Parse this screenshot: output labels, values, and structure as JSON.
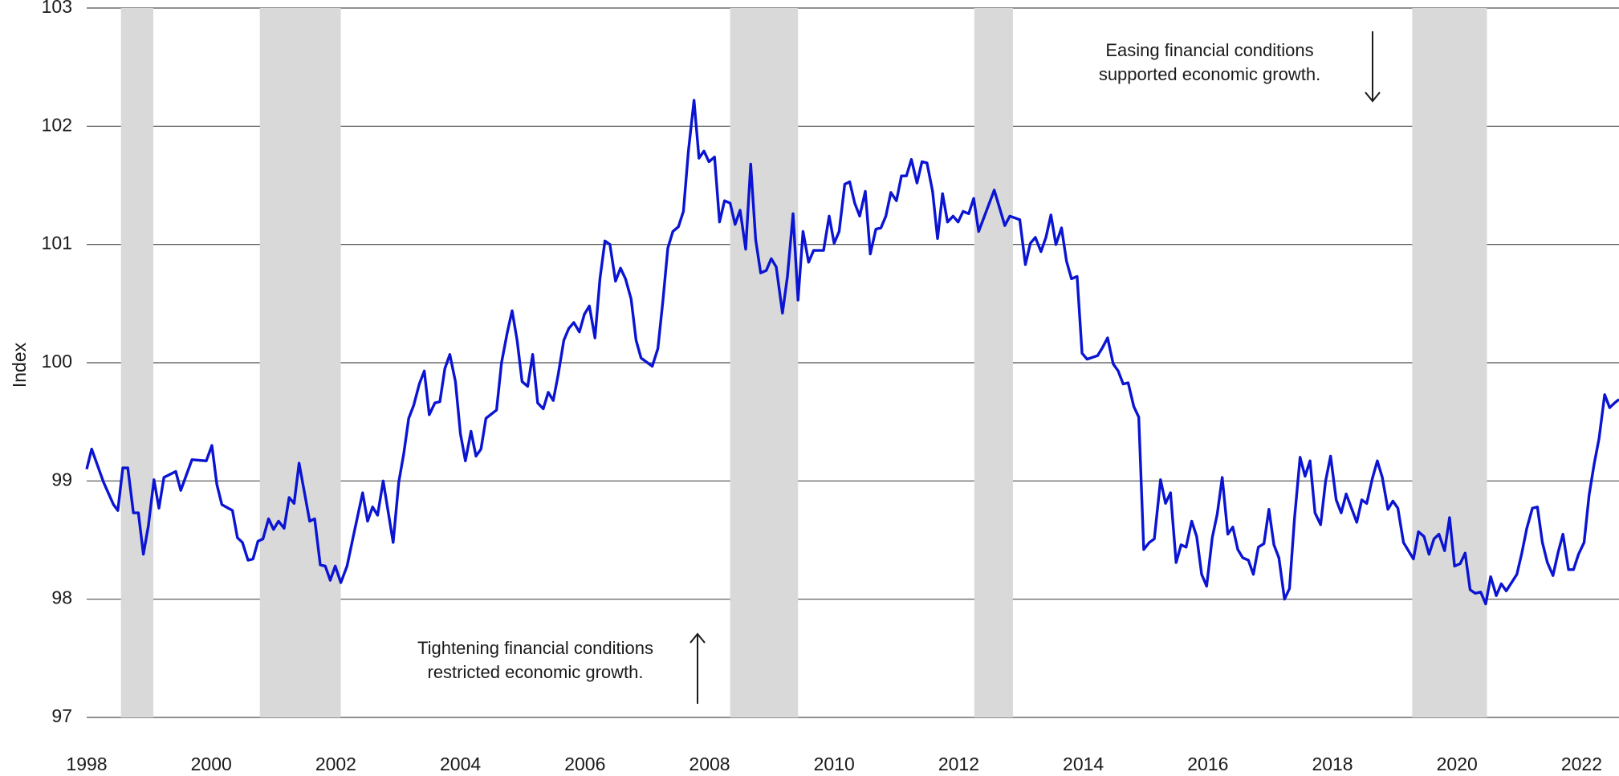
{
  "chart_data": {
    "type": "line",
    "ylabel": "Index",
    "color": "#0a14d2",
    "shade_color": "#d9d9d9",
    "grid": true,
    "xlim": [
      1998,
      2022.6
    ],
    "ylim": [
      97,
      103
    ],
    "xticks": [
      1998,
      2000,
      2002,
      2004,
      2006,
      2008,
      2010,
      2012,
      2014,
      2016,
      2018,
      2020,
      2022
    ],
    "yticks": [
      97,
      98,
      99,
      100,
      101,
      102,
      103
    ],
    "shaded_periods": [
      [
        1998.55,
        1999.07
      ],
      [
        2000.78,
        2002.08
      ],
      [
        2008.33,
        2009.42
      ],
      [
        2012.25,
        2012.87
      ],
      [
        2019.28,
        2020.48
      ]
    ],
    "annotations": [
      {
        "lines": [
          "Easing financial conditions",
          "supported economic growth."
        ],
        "arrow": "down"
      },
      {
        "lines": [
          "Tightening financial conditions",
          "restricted economic growth."
        ],
        "arrow": "up"
      }
    ],
    "x": [
      1998.0,
      1998.08,
      1998.27,
      1998.43,
      1998.5,
      1998.58,
      1998.66,
      1998.75,
      1998.83,
      1998.91,
      1998.99,
      1999.08,
      1999.16,
      1999.24,
      1999.43,
      1999.51,
      1999.69,
      1999.92,
      2000.01,
      2000.09,
      2000.17,
      2000.34,
      2000.42,
      2000.5,
      2000.59,
      2000.67,
      2000.75,
      2000.83,
      2000.92,
      2001.0,
      2001.08,
      2001.17,
      2001.25,
      2001.33,
      2001.41,
      2001.58,
      2001.66,
      2001.75,
      2001.83,
      2001.91,
      2001.99,
      2002.08,
      2002.18,
      2002.28,
      2002.43,
      2002.51,
      2002.59,
      2002.67,
      2002.76,
      2002.92,
      2003.01,
      2003.09,
      2003.17,
      2003.25,
      2003.34,
      2003.42,
      2003.5,
      2003.59,
      2003.67,
      2003.75,
      2003.83,
      2003.92,
      2004.0,
      2004.08,
      2004.17,
      2004.25,
      2004.33,
      2004.41,
      2004.58,
      2004.66,
      2004.75,
      2004.83,
      2004.91,
      2004.99,
      2005.08,
      2005.16,
      2005.24,
      2005.33,
      2005.41,
      2005.49,
      2005.57,
      2005.66,
      2005.74,
      2005.82,
      2005.91,
      2005.99,
      2006.07,
      2006.16,
      2006.24,
      2006.32,
      2006.4,
      2006.49,
      2006.57,
      2006.65,
      2006.74,
      2006.82,
      2006.9,
      2007.08,
      2007.17,
      2007.25,
      2007.33,
      2007.41,
      2007.5,
      2007.58,
      2007.66,
      2007.75,
      2007.83,
      2007.91,
      2007.99,
      2008.08,
      2008.16,
      2008.24,
      2008.33,
      2008.41,
      2008.49,
      2008.58,
      2008.66,
      2008.74,
      2008.82,
      2008.91,
      2008.99,
      2009.07,
      2009.17,
      2009.25,
      2009.34,
      2009.42,
      2009.5,
      2009.59,
      2009.67,
      2009.83,
      2009.92,
      2010.0,
      2010.08,
      2010.17,
      2010.25,
      2010.33,
      2010.41,
      2010.5,
      2010.58,
      2010.67,
      2010.75,
      2010.83,
      2010.91,
      2011.0,
      2011.08,
      2011.16,
      2011.24,
      2011.33,
      2011.41,
      2011.49,
      2011.58,
      2011.66,
      2011.74,
      2011.82,
      2011.91,
      2011.99,
      2012.07,
      2012.16,
      2012.24,
      2012.32,
      2012.57,
      2012.74,
      2012.82,
      2012.98,
      2013.07,
      2013.15,
      2013.23,
      2013.32,
      2013.4,
      2013.48,
      2013.56,
      2013.65,
      2013.73,
      2013.81,
      2013.9,
      2013.98,
      2014.06,
      2014.23,
      2014.31,
      2014.39,
      2014.48,
      2014.56,
      2014.64,
      2014.72,
      2014.81,
      2014.89,
      2014.97,
      2015.06,
      2015.14,
      2015.24,
      2015.32,
      2015.4,
      2015.49,
      2015.57,
      2015.65,
      2015.74,
      2015.82,
      2015.9,
      2015.98,
      2016.07,
      2016.15,
      2016.23,
      2016.32,
      2016.4,
      2016.48,
      2016.56,
      2016.65,
      2016.73,
      2016.81,
      2016.9,
      2016.98,
      2017.06,
      2017.14,
      2017.23,
      2017.31,
      2017.39,
      2017.48,
      2017.56,
      2017.64,
      2017.72,
      2017.81,
      2017.89,
      2017.97,
      2018.06,
      2018.14,
      2018.22,
      2018.39,
      2018.47,
      2018.55,
      2018.64,
      2018.72,
      2018.8,
      2018.89,
      2018.97,
      2019.05,
      2019.14,
      2019.3,
      2019.38,
      2019.47,
      2019.55,
      2019.63,
      2019.71,
      2019.8,
      2019.88,
      2019.96,
      2020.05,
      2020.13,
      2020.21,
      2020.29,
      2020.38,
      2020.46,
      2020.54,
      2020.63,
      2020.71,
      2020.79,
      2020.96,
      2021.04,
      2021.12,
      2021.21,
      2021.29,
      2021.37,
      2021.45,
      2021.54,
      2021.62,
      2021.7,
      2021.79,
      2021.87,
      2021.95,
      2022.04,
      2022.12,
      2022.2,
      2022.28,
      2022.37,
      2022.45,
      2022.53,
      2022.6
    ],
    "values": [
      99.1,
      99.27,
      98.99,
      98.8,
      98.75,
      99.11,
      99.11,
      98.73,
      98.73,
      98.38,
      98.62,
      99.01,
      98.77,
      99.03,
      99.08,
      98.92,
      99.18,
      99.17,
      99.3,
      98.97,
      98.8,
      98.75,
      98.52,
      98.48,
      98.33,
      98.34,
      98.49,
      98.51,
      98.68,
      98.59,
      98.66,
      98.6,
      98.86,
      98.81,
      99.15,
      98.66,
      98.68,
      98.29,
      98.28,
      98.16,
      98.28,
      98.14,
      98.28,
      98.53,
      98.9,
      98.66,
      98.78,
      98.71,
      99.0,
      98.48,
      98.99,
      99.23,
      99.53,
      99.64,
      99.82,
      99.93,
      99.56,
      99.66,
      99.67,
      99.95,
      100.07,
      99.84,
      99.4,
      99.17,
      99.42,
      99.21,
      99.27,
      99.53,
      99.6,
      100.0,
      100.25,
      100.44,
      100.19,
      99.84,
      99.8,
      100.07,
      99.66,
      99.61,
      99.75,
      99.68,
      99.9,
      100.19,
      100.29,
      100.34,
      100.26,
      100.41,
      100.48,
      100.21,
      100.71,
      101.03,
      101.0,
      100.69,
      100.8,
      100.71,
      100.54,
      100.19,
      100.04,
      99.97,
      100.12,
      100.52,
      100.97,
      101.11,
      101.15,
      101.28,
      101.79,
      102.22,
      101.73,
      101.79,
      101.7,
      101.74,
      101.19,
      101.37,
      101.35,
      101.17,
      101.29,
      100.96,
      101.68,
      101.04,
      100.76,
      100.78,
      100.88,
      100.81,
      100.42,
      100.73,
      101.26,
      100.53,
      101.11,
      100.85,
      100.95,
      100.95,
      101.24,
      101.01,
      101.11,
      101.51,
      101.53,
      101.35,
      101.24,
      101.45,
      100.92,
      101.13,
      101.14,
      101.24,
      101.44,
      101.37,
      101.58,
      101.58,
      101.72,
      101.52,
      101.7,
      101.69,
      101.45,
      101.05,
      101.43,
      101.19,
      101.24,
      101.19,
      101.28,
      101.26,
      101.39,
      101.11,
      101.46,
      101.16,
      101.24,
      101.21,
      100.83,
      101.01,
      101.06,
      100.94,
      101.06,
      101.25,
      101.0,
      101.14,
      100.86,
      100.71,
      100.73,
      100.08,
      100.03,
      100.06,
      100.13,
      100.21,
      99.99,
      99.93,
      99.82,
      99.83,
      99.63,
      99.54,
      98.42,
      98.48,
      98.51,
      99.01,
      98.81,
      98.9,
      98.31,
      98.46,
      98.44,
      98.66,
      98.53,
      98.21,
      98.11,
      98.52,
      98.72,
      99.03,
      98.55,
      98.61,
      98.42,
      98.35,
      98.33,
      98.21,
      98.44,
      98.47,
      98.76,
      98.46,
      98.35,
      98.0,
      98.09,
      98.68,
      99.2,
      99.04,
      99.17,
      98.73,
      98.63,
      99.0,
      99.21,
      98.84,
      98.73,
      98.89,
      98.65,
      98.84,
      98.81,
      99.02,
      99.17,
      99.03,
      98.76,
      98.83,
      98.77,
      98.48,
      98.34,
      98.57,
      98.53,
      98.38,
      98.51,
      98.55,
      98.41,
      98.69,
      98.28,
      98.3,
      98.39,
      98.08,
      98.05,
      98.06,
      97.96,
      98.19,
      98.03,
      98.13,
      98.07,
      98.21,
      98.39,
      98.6,
      98.77,
      98.78,
      98.48,
      98.31,
      98.2,
      98.39,
      98.55,
      98.25,
      98.25,
      98.38,
      98.48,
      98.88,
      99.14,
      99.36,
      99.73,
      99.62,
      99.66,
      99.69
    ]
  }
}
